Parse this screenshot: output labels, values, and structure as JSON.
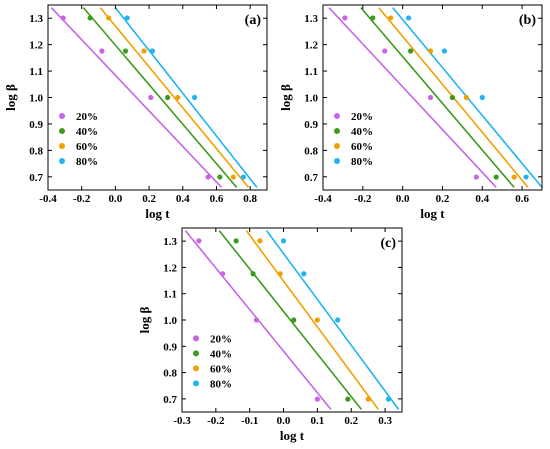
{
  "chart_data": [
    {
      "type": "scatter",
      "panel_label": "(a)",
      "xlabel": "log t",
      "ylabel": "log β",
      "xlim": [
        -0.4,
        0.9
      ],
      "ylim": [
        0.65,
        1.35
      ],
      "xticks": [
        "-0.4",
        "-0.2",
        "0.0",
        "0.2",
        "0.4",
        "0.6",
        "0.8"
      ],
      "xtick_values": [
        -0.4,
        -0.2,
        0.0,
        0.2,
        0.4,
        0.6,
        0.8
      ],
      "yticks": [
        "0.7",
        "0.8",
        "0.9",
        "1.0",
        "1.1",
        "1.2",
        "1.3"
      ],
      "ytick_values": [
        0.7,
        0.8,
        0.9,
        1.0,
        1.1,
        1.2,
        1.3
      ],
      "legend_position": "bottom-left",
      "series": [
        {
          "name": "20%",
          "color": "#c864e6",
          "points": [
            [
              -0.31,
              1.301
            ],
            [
              -0.08,
              1.176
            ],
            [
              0.21,
              1.0
            ],
            [
              0.55,
              0.699
            ]
          ],
          "fit": [
            [
              -0.38,
              1.34
            ],
            [
              0.63,
              0.66
            ]
          ]
        },
        {
          "name": "40%",
          "color": "#3c9a1e",
          "points": [
            [
              -0.15,
              1.301
            ],
            [
              0.06,
              1.176
            ],
            [
              0.31,
              1.0
            ],
            [
              0.62,
              0.699
            ]
          ],
          "fit": [
            [
              -0.19,
              1.34
            ],
            [
              0.72,
              0.66
            ]
          ]
        },
        {
          "name": "60%",
          "color": "#f0a000",
          "points": [
            [
              -0.04,
              1.301
            ],
            [
              0.17,
              1.176
            ],
            [
              0.37,
              1.0
            ],
            [
              0.7,
              0.699
            ]
          ],
          "fit": [
            [
              -0.09,
              1.34
            ],
            [
              0.79,
              0.66
            ]
          ]
        },
        {
          "name": "80%",
          "color": "#1eb4f0",
          "points": [
            [
              0.07,
              1.301
            ],
            [
              0.22,
              1.176
            ],
            [
              0.47,
              1.0
            ],
            [
              0.76,
              0.699
            ]
          ],
          "fit": [
            [
              0.0,
              1.34
            ],
            [
              0.84,
              0.66
            ]
          ]
        }
      ]
    },
    {
      "type": "scatter",
      "panel_label": "(b)",
      "xlabel": "log t",
      "ylabel": "log β",
      "xlim": [
        -0.4,
        0.7
      ],
      "ylim": [
        0.65,
        1.35
      ],
      "xticks": [
        "-0.4",
        "-0.2",
        "0.0",
        "0.2",
        "0.4",
        "0.6"
      ],
      "xtick_values": [
        -0.4,
        -0.2,
        0.0,
        0.2,
        0.4,
        0.6
      ],
      "yticks": [
        "0.7",
        "0.8",
        "0.9",
        "1.0",
        "1.1",
        "1.2",
        "1.3"
      ],
      "ytick_values": [
        0.7,
        0.8,
        0.9,
        1.0,
        1.1,
        1.2,
        1.3
      ],
      "legend_position": "bottom-left",
      "series": [
        {
          "name": "20%",
          "color": "#c864e6",
          "points": [
            [
              -0.29,
              1.301
            ],
            [
              -0.09,
              1.176
            ],
            [
              0.14,
              1.0
            ],
            [
              0.37,
              0.699
            ]
          ],
          "fit": [
            [
              -0.37,
              1.34
            ],
            [
              0.47,
              0.66
            ]
          ]
        },
        {
          "name": "40%",
          "color": "#3c9a1e",
          "points": [
            [
              -0.15,
              1.301
            ],
            [
              0.04,
              1.176
            ],
            [
              0.25,
              1.0
            ],
            [
              0.47,
              0.699
            ]
          ],
          "fit": [
            [
              -0.21,
              1.34
            ],
            [
              0.56,
              0.66
            ]
          ]
        },
        {
          "name": "60%",
          "color": "#f0a000",
          "points": [
            [
              -0.06,
              1.301
            ],
            [
              0.14,
              1.176
            ],
            [
              0.32,
              1.0
            ],
            [
              0.56,
              0.699
            ]
          ],
          "fit": [
            [
              -0.12,
              1.34
            ],
            [
              0.63,
              0.66
            ]
          ]
        },
        {
          "name": "80%",
          "color": "#1eb4f0",
          "points": [
            [
              0.03,
              1.301
            ],
            [
              0.21,
              1.176
            ],
            [
              0.4,
              1.0
            ],
            [
              0.62,
              0.699
            ]
          ],
          "fit": [
            [
              -0.05,
              1.34
            ],
            [
              0.7,
              0.66
            ]
          ]
        }
      ]
    },
    {
      "type": "scatter",
      "panel_label": "(c)",
      "xlabel": "log t",
      "ylabel": "log β",
      "xlim": [
        -0.3,
        0.35
      ],
      "ylim": [
        0.65,
        1.35
      ],
      "xticks": [
        "-0.3",
        "-0.2",
        "-0.1",
        "0.0",
        "0.1",
        "0.2",
        "0.3"
      ],
      "xtick_values": [
        -0.3,
        -0.2,
        -0.1,
        0.0,
        0.1,
        0.2,
        0.3
      ],
      "yticks": [
        "0.7",
        "0.8",
        "0.9",
        "1.0",
        "1.1",
        "1.2",
        "1.3"
      ],
      "ytick_values": [
        0.7,
        0.8,
        0.9,
        1.0,
        1.1,
        1.2,
        1.3
      ],
      "legend_position": "bottom-left",
      "series": [
        {
          "name": "20%",
          "color": "#c864e6",
          "points": [
            [
              -0.25,
              1.301
            ],
            [
              -0.18,
              1.176
            ],
            [
              -0.08,
              1.0
            ],
            [
              0.1,
              0.699
            ]
          ],
          "fit": [
            [
              -0.29,
              1.34
            ],
            [
              0.14,
              0.66
            ]
          ]
        },
        {
          "name": "40%",
          "color": "#3c9a1e",
          "points": [
            [
              -0.14,
              1.301
            ],
            [
              -0.09,
              1.176
            ],
            [
              0.03,
              1.0
            ],
            [
              0.19,
              0.699
            ]
          ],
          "fit": [
            [
              -0.19,
              1.34
            ],
            [
              0.23,
              0.66
            ]
          ]
        },
        {
          "name": "60%",
          "color": "#f0a000",
          "points": [
            [
              -0.07,
              1.301
            ],
            [
              -0.01,
              1.176
            ],
            [
              0.1,
              1.0
            ],
            [
              0.25,
              0.699
            ]
          ],
          "fit": [
            [
              -0.11,
              1.34
            ],
            [
              0.28,
              0.66
            ]
          ]
        },
        {
          "name": "80%",
          "color": "#1eb4f0",
          "points": [
            [
              0.0,
              1.301
            ],
            [
              0.06,
              1.176
            ],
            [
              0.16,
              1.0
            ],
            [
              0.31,
              0.699
            ]
          ],
          "fit": [
            [
              -0.05,
              1.34
            ],
            [
              0.34,
              0.66
            ]
          ]
        }
      ]
    }
  ]
}
